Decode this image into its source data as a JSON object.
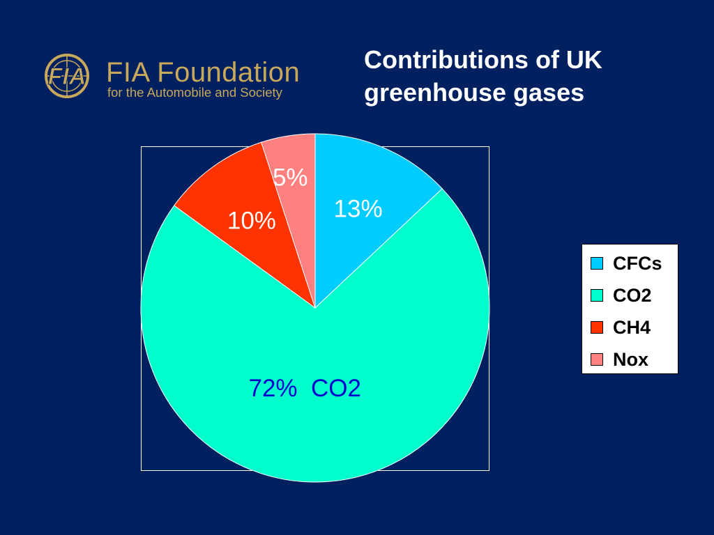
{
  "logo": {
    "emblem_text": "FIA",
    "name": "FIA Foundation",
    "subtitle": "for the Automobile and Society",
    "color": "#c8a85a"
  },
  "chart_data": {
    "type": "pie",
    "title": "Contributions of UK\ngreenhouse gases",
    "slices": [
      {
        "name": "CFCs",
        "value": 13,
        "label": "13%",
        "color": "#00ccff"
      },
      {
        "name": "CO2",
        "value": 72,
        "label": "72%  CO2",
        "color": "#00ffcc"
      },
      {
        "name": "CH4",
        "value": 10,
        "label": "10%",
        "color": "#ff3300"
      },
      {
        "name": "Nox",
        "value": 5,
        "label": "5%",
        "color": "#ff8080"
      }
    ],
    "legend": {
      "position": "right",
      "entries": [
        "CFCs",
        "CO2",
        "CH4",
        "Nox"
      ]
    }
  },
  "colors": {
    "background": "#002060",
    "title": "#ffffff",
    "data_label_light": "#ffffff",
    "data_label_dark": "#0000cc"
  }
}
